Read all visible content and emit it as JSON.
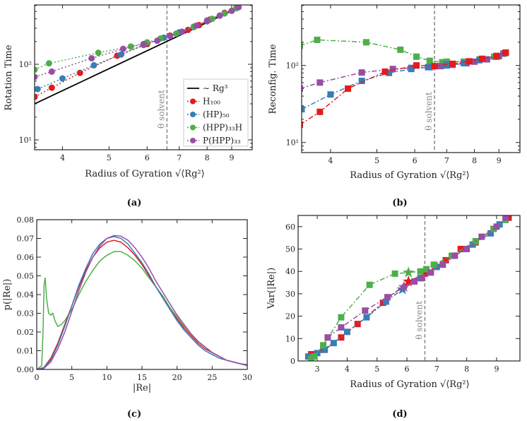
{
  "colors": {
    "H100": "#e41a1c",
    "HP50": "#377eb8",
    "HPP33H": "#4daf4a",
    "PHPP33": "#984ea3",
    "theta": "#888888"
  },
  "theta_label": "θ solvent",
  "chart_data": [
    {
      "id": "a",
      "caption": "(a)",
      "type": "line",
      "xscale": "log",
      "yscale": "log",
      "xlabel": "Radius of Gyration √⟨Rg²⟩",
      "ylabel": "Rotation Time",
      "xlim": [
        3.5,
        9.93
      ],
      "ylim": [
        7.4,
        610
      ],
      "xticks": [
        4,
        5,
        6,
        7,
        8,
        9
      ],
      "xticklabels": [
        "4",
        "5",
        "6",
        "7",
        "8",
        "9"
      ],
      "yticks": [
        10,
        100
      ],
      "yticklabels": [
        "10¹",
        "10²"
      ],
      "theta_x": 6.6,
      "marker": "circle",
      "linestyle": "dotted",
      "legend": {
        "position": "lower-right",
        "entries": [
          "∼ Rg³",
          "H₁₀₀",
          "(HP)₅₀",
          "(HPP)₃₃H",
          "P(HPP)₃₃"
        ]
      },
      "reference": {
        "name": "∼ Rg³",
        "x": [
          3.5,
          9.4
        ],
        "y": [
          30,
          581
        ]
      },
      "series": [
        {
          "name": "H₁₀₀",
          "key": "H100",
          "x": [
            3.5,
            3.8,
            4.35,
            5.2,
            6.0,
            6.7,
            7.3,
            7.7,
            8.1,
            8.7,
            9.3
          ],
          "y": [
            37,
            49,
            77,
            130,
            185,
            240,
            285,
            330,
            390,
            480,
            570
          ]
        },
        {
          "name": "(HP)₅₀",
          "key": "HP50",
          "x": [
            3.55,
            4.0,
            4.65,
            5.3,
            5.9,
            6.5,
            7.0,
            7.5,
            8.0,
            8.5,
            9.2
          ],
          "y": [
            47,
            65,
            97,
            135,
            180,
            225,
            265,
            310,
            370,
            440,
            560
          ]
        },
        {
          "name": "(HPP)₃₃H",
          "key": "HPP33H",
          "x": [
            3.5,
            3.75,
            4.75,
            5.55,
            6.0,
            6.4,
            6.9,
            7.5,
            8.2,
            8.7,
            9.2
          ],
          "y": [
            85,
            103,
            142,
            172,
            195,
            220,
            255,
            315,
            400,
            470,
            550
          ]
        },
        {
          "name": "P(HPP)₃₃",
          "key": "PHPP33",
          "x": [
            3.5,
            3.8,
            4.6,
            5.35,
            5.9,
            6.3,
            6.7,
            7.1,
            7.6,
            8.0,
            8.5,
            9.0,
            9.3
          ],
          "y": [
            68,
            80,
            120,
            160,
            185,
            205,
            235,
            270,
            325,
            380,
            440,
            510,
            570
          ]
        }
      ]
    },
    {
      "id": "b",
      "caption": "(b)",
      "type": "line",
      "xscale": "log",
      "yscale": "log",
      "xlabel": "Radius of Gyration √⟨Rg²⟩",
      "ylabel": "Reconfig. Time",
      "xlim": [
        3.48,
        9.96
      ],
      "ylim": [
        7.4,
        610
      ],
      "xticks": [
        4,
        5,
        6,
        7,
        8,
        9
      ],
      "xticklabels": [
        "4",
        "5",
        "6",
        "7",
        "8",
        "9"
      ],
      "yticks": [
        10,
        100
      ],
      "yticklabels": [
        "10¹",
        "10²"
      ],
      "theta_x": 6.6,
      "marker": "square",
      "linestyle": "dashdot",
      "series": [
        {
          "name": "(HPP)₃₃H",
          "key": "HPP33H",
          "x": [
            3.45,
            3.75,
            4.75,
            5.6,
            6.05,
            6.45,
            6.85,
            7.0,
            7.6,
            8.2,
            8.8,
            9.2
          ],
          "y": [
            180,
            215,
            200,
            160,
            130,
            115,
            110,
            112,
            112,
            120,
            130,
            142
          ]
        },
        {
          "name": "P(HPP)₃₃",
          "key": "PHPP33",
          "x": [
            3.45,
            3.8,
            4.65,
            5.4,
            5.9,
            6.45,
            6.8,
            7.0,
            7.2,
            7.7,
            8.0,
            8.5,
            9.0,
            9.2
          ],
          "y": [
            50,
            60,
            81,
            90,
            93,
            95,
            98,
            103,
            102,
            107,
            112,
            120,
            132,
            143
          ]
        },
        {
          "name": "(HP)₅₀",
          "key": "HP50",
          "x": [
            3.48,
            4.0,
            4.65,
            5.3,
            5.9,
            6.4,
            7.0,
            7.6,
            8.2,
            8.9,
            9.3
          ],
          "y": [
            27,
            42,
            63,
            80,
            90,
            95,
            100,
            107,
            117,
            130,
            145
          ]
        },
        {
          "name": "H₁₀₀",
          "key": "H100",
          "x": [
            3.45,
            3.8,
            4.35,
            5.2,
            6.05,
            6.6,
            7.2,
            7.8,
            8.3,
            8.9,
            9.3
          ],
          "y": [
            17,
            25,
            50,
            83,
            100,
            98,
            105,
            113,
            122,
            133,
            147
          ]
        }
      ]
    },
    {
      "id": "c",
      "caption": "(c)",
      "type": "line",
      "xscale": "linear",
      "yscale": "linear",
      "xlabel": "|Re|",
      "ylabel": "p(|Re|)",
      "xlim": [
        0,
        30
      ],
      "ylim": [
        0,
        0.08
      ],
      "xticks": [
        0,
        5,
        10,
        15,
        20,
        25,
        30
      ],
      "xticklabels": [
        "0",
        "5",
        "10",
        "15",
        "20",
        "25",
        "30"
      ],
      "yticks": [
        0,
        0.01,
        0.02,
        0.03,
        0.04,
        0.05,
        0.06,
        0.07,
        0.08
      ],
      "yticklabels": [
        "0.00",
        "0.01",
        "0.02",
        "0.03",
        "0.04",
        "0.05",
        "0.06",
        "0.07",
        "0.08"
      ],
      "marker": "none",
      "linestyle": "solid",
      "series": [
        {
          "name": "(HPP)₃₃H",
          "key": "HPP33H",
          "x": [
            0,
            0.7,
            0.9,
            1.05,
            1.2,
            1.4,
            1.7,
            2.0,
            2.3,
            2.6,
            3.0,
            3.5,
            4,
            5,
            6,
            7,
            8,
            9,
            10,
            11,
            12,
            13,
            14,
            15,
            16,
            17,
            18,
            19,
            20,
            21,
            22,
            23,
            24,
            25,
            26,
            27,
            28,
            29,
            30
          ],
          "y": [
            0,
            0.002,
            0.02,
            0.045,
            0.049,
            0.038,
            0.03,
            0.029,
            0.03,
            0.026,
            0.023,
            0.024,
            0.026,
            0.032,
            0.04,
            0.047,
            0.053,
            0.058,
            0.061,
            0.063,
            0.063,
            0.061,
            0.058,
            0.054,
            0.049,
            0.044,
            0.039,
            0.033,
            0.028,
            0.023,
            0.019,
            0.015,
            0.012,
            0.009,
            0.007,
            0.005,
            0.004,
            0.003,
            0.0025
          ]
        },
        {
          "name": "H₁₀₀",
          "key": "H100",
          "x": [
            0,
            1,
            2,
            3,
            4,
            5,
            6,
            7,
            8,
            9,
            10,
            11,
            12,
            13,
            14,
            15,
            16,
            17,
            18,
            19,
            20,
            21,
            22,
            23,
            24,
            25,
            26,
            27,
            28,
            29,
            30
          ],
          "y": [
            0,
            0.001,
            0.006,
            0.014,
            0.024,
            0.034,
            0.044,
            0.053,
            0.06,
            0.065,
            0.068,
            0.069,
            0.068,
            0.065,
            0.061,
            0.056,
            0.05,
            0.044,
            0.038,
            0.032,
            0.027,
            0.022,
            0.018,
            0.014,
            0.011,
            0.009,
            0.007,
            0.005,
            0.004,
            0.003,
            0.0025
          ]
        },
        {
          "name": "(HP)₅₀",
          "key": "HP50",
          "x": [
            0,
            1,
            2,
            3,
            4,
            5,
            6,
            7,
            8,
            9,
            10,
            11,
            12,
            13,
            14,
            15,
            16,
            17,
            18,
            19,
            20,
            21,
            22,
            23,
            24,
            25,
            26,
            27,
            28,
            29,
            30
          ],
          "y": [
            0,
            0.001,
            0.005,
            0.013,
            0.023,
            0.034,
            0.045,
            0.054,
            0.062,
            0.067,
            0.07,
            0.071,
            0.07,
            0.067,
            0.062,
            0.057,
            0.051,
            0.044,
            0.038,
            0.032,
            0.026,
            0.021,
            0.017,
            0.013,
            0.01,
            0.008,
            0.006,
            0.005,
            0.004,
            0.003,
            0.002
          ]
        },
        {
          "name": "P(HPP)₃₃",
          "key": "PHPP33",
          "x": [
            0,
            1,
            2,
            3,
            4,
            5,
            6,
            7,
            8,
            9,
            10,
            11,
            12,
            13,
            14,
            15,
            16,
            17,
            18,
            19,
            20,
            21,
            22,
            23,
            24,
            25,
            26,
            27,
            28,
            29,
            30
          ],
          "y": [
            0,
            0.0005,
            0.004,
            0.011,
            0.02,
            0.031,
            0.042,
            0.052,
            0.06,
            0.066,
            0.07,
            0.0715,
            0.0712,
            0.069,
            0.065,
            0.06,
            0.054,
            0.047,
            0.041,
            0.035,
            0.029,
            0.024,
            0.019,
            0.015,
            0.012,
            0.009,
            0.007,
            0.005,
            0.004,
            0.003,
            0.0025
          ]
        }
      ]
    },
    {
      "id": "d",
      "caption": "(d)",
      "type": "line",
      "xscale": "linear",
      "yscale": "linear",
      "xlabel": "Radius of Gyration √⟨Rg²⟩",
      "ylabel": "Var(|Re|)",
      "xlim": [
        2.36,
        9.78
      ],
      "ylim": [
        0,
        65
      ],
      "xticks": [
        3,
        4,
        5,
        6,
        7,
        8,
        9
      ],
      "xticklabels": [
        "3",
        "4",
        "5",
        "6",
        "7",
        "8",
        "9"
      ],
      "yticks": [
        0,
        10,
        20,
        30,
        40,
        50,
        60
      ],
      "yticklabels": [
        "0",
        "10",
        "20",
        "30",
        "40",
        "50",
        "60"
      ],
      "theta_x": 6.6,
      "marker": "square",
      "linestyle": "dashdot",
      "series": [
        {
          "name": "H₁₀₀",
          "key": "H100",
          "x": [
            2.8,
            3.2,
            3.8,
            4.35,
            5.2,
            6.05,
            6.6,
            7.3,
            7.8,
            8.3,
            8.9,
            9.4
          ],
          "y": [
            3,
            5,
            10.5,
            16.5,
            26,
            35.5,
            39,
            45,
            50,
            53,
            59,
            64
          ],
          "star_index": 5
        },
        {
          "name": "(HP)₅₀",
          "key": "HP50",
          "x": [
            2.7,
            3.0,
            3.25,
            3.55,
            4.0,
            4.65,
            5.3,
            5.85,
            6.45,
            7.0,
            7.6,
            8.2,
            8.8,
            9.1
          ],
          "y": [
            2,
            3.5,
            5,
            8,
            13,
            19.5,
            26.5,
            32,
            37,
            42,
            47,
            52,
            57,
            61
          ],
          "star_index": 7
        },
        {
          "name": "(HPP)₃₃H",
          "key": "HPP33H",
          "x": [
            2.8,
            2.9,
            3.2,
            3.8,
            4.75,
            5.6,
            6.05,
            6.45,
            6.65,
            6.9,
            7.5,
            8.3,
            8.9,
            9.3
          ],
          "y": [
            1,
            2,
            7,
            19.5,
            34,
            39,
            39.5,
            40,
            41,
            43,
            47,
            53.5,
            59,
            63
          ],
          "star_index": 6
        },
        {
          "name": "P(HPP)₃₃",
          "key": "PHPP33",
          "x": [
            3.35,
            3.8,
            4.6,
            5.35,
            5.9,
            6.25,
            6.5,
            6.8,
            7.2,
            7.6,
            8.0,
            8.5,
            9.0,
            9.3
          ],
          "y": [
            10.5,
            15,
            22.5,
            28.5,
            33,
            35.5,
            37,
            39.5,
            43,
            47,
            50,
            55.5,
            60,
            64
          ],
          "star_index": 4
        }
      ]
    }
  ]
}
